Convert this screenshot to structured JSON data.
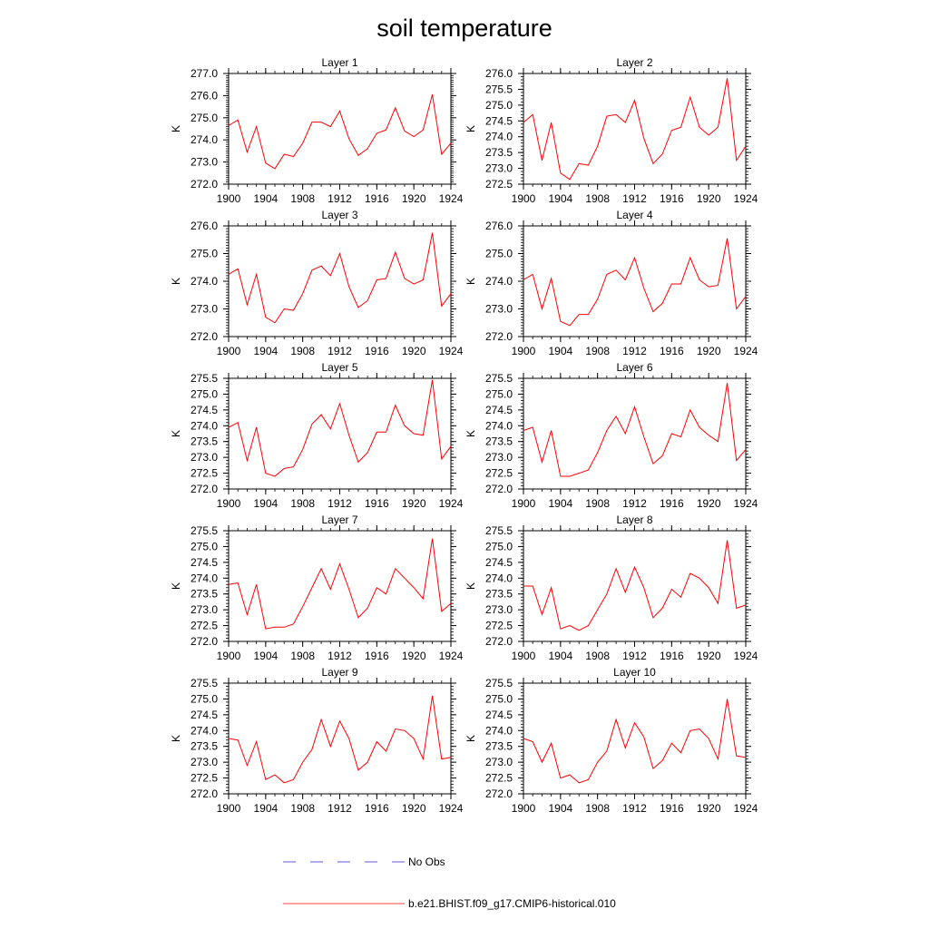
{
  "figure": {
    "title": "soil temperature"
  },
  "legend": {
    "entries": [
      {
        "label": "No Obs",
        "color": "#5a5ad8",
        "style": "dashed"
      },
      {
        "label": "b.e21.BHIST.f09_g17.CMIP6-historical.010",
        "color": "#ff0000",
        "style": "solid"
      }
    ]
  },
  "chart_data": [
    {
      "type": "line",
      "title": "Layer 1",
      "ylabel": "K",
      "x": [
        1900,
        1901,
        1902,
        1903,
        1904,
        1905,
        1906,
        1907,
        1908,
        1909,
        1910,
        1911,
        1912,
        1913,
        1914,
        1915,
        1916,
        1917,
        1918,
        1919,
        1920,
        1921,
        1922,
        1923,
        1924
      ],
      "ylim": [
        272.0,
        277.0
      ],
      "yticks": [
        "272.0",
        "273.0",
        "274.0",
        "275.0",
        "276.0",
        "277.0"
      ],
      "xlim": [
        1900,
        1924
      ],
      "xticks": [
        "1900",
        "1904",
        "1908",
        "1912",
        "1916",
        "1920",
        "1924"
      ],
      "series": [
        {
          "color": "#ff0000",
          "values": [
            274.65,
            274.9,
            273.45,
            274.6,
            272.95,
            272.7,
            273.35,
            273.25,
            273.85,
            274.8,
            274.8,
            274.6,
            275.3,
            274.05,
            273.3,
            273.6,
            274.3,
            274.45,
            275.45,
            274.4,
            274.15,
            274.45,
            276.05,
            273.35,
            273.85
          ]
        }
      ]
    },
    {
      "type": "line",
      "title": "Layer 2",
      "ylabel": "K",
      "x": [
        1900,
        1901,
        1902,
        1903,
        1904,
        1905,
        1906,
        1907,
        1908,
        1909,
        1910,
        1911,
        1912,
        1913,
        1914,
        1915,
        1916,
        1917,
        1918,
        1919,
        1920,
        1921,
        1922,
        1923,
        1924
      ],
      "ylim": [
        272.5,
        276.0
      ],
      "yticks": [
        "272.5",
        "273.0",
        "273.5",
        "274.0",
        "274.5",
        "275.0",
        "275.5",
        "276.0"
      ],
      "xlim": [
        1900,
        1924
      ],
      "xticks": [
        "1900",
        "1904",
        "1908",
        "1912",
        "1916",
        "1920",
        "1924"
      ],
      "series": [
        {
          "color": "#ff0000",
          "values": [
            274.45,
            274.7,
            273.25,
            274.45,
            272.85,
            272.65,
            273.15,
            273.1,
            273.7,
            274.65,
            274.7,
            274.45,
            275.15,
            273.95,
            273.15,
            273.45,
            274.2,
            274.3,
            275.25,
            274.3,
            274.05,
            274.3,
            275.85,
            273.25,
            273.7
          ]
        }
      ]
    },
    {
      "type": "line",
      "title": "Layer 3",
      "ylabel": "K",
      "x": [
        1900,
        1901,
        1902,
        1903,
        1904,
        1905,
        1906,
        1907,
        1908,
        1909,
        1910,
        1911,
        1912,
        1913,
        1914,
        1915,
        1916,
        1917,
        1918,
        1919,
        1920,
        1921,
        1922,
        1923,
        1924
      ],
      "ylim": [
        272.0,
        276.0
      ],
      "yticks": [
        "272.0",
        "273.0",
        "274.0",
        "275.0",
        "276.0"
      ],
      "xlim": [
        1900,
        1924
      ],
      "xticks": [
        "1900",
        "1904",
        "1908",
        "1912",
        "1916",
        "1920",
        "1924"
      ],
      "series": [
        {
          "color": "#ff0000",
          "values": [
            274.25,
            274.45,
            273.15,
            274.25,
            272.7,
            272.5,
            273.0,
            272.95,
            273.55,
            274.4,
            274.55,
            274.2,
            275.0,
            273.8,
            273.05,
            273.3,
            274.05,
            274.1,
            275.05,
            274.1,
            273.9,
            274.05,
            275.75,
            273.1,
            273.55
          ]
        }
      ]
    },
    {
      "type": "line",
      "title": "Layer 4",
      "ylabel": "K",
      "x": [
        1900,
        1901,
        1902,
        1903,
        1904,
        1905,
        1906,
        1907,
        1908,
        1909,
        1910,
        1911,
        1912,
        1913,
        1914,
        1915,
        1916,
        1917,
        1918,
        1919,
        1920,
        1921,
        1922,
        1923,
        1924
      ],
      "ylim": [
        272.0,
        276.0
      ],
      "yticks": [
        "272.0",
        "273.0",
        "274.0",
        "275.0",
        "276.0"
      ],
      "xlim": [
        1900,
        1924
      ],
      "xticks": [
        "1900",
        "1904",
        "1908",
        "1912",
        "1916",
        "1920",
        "1924"
      ],
      "series": [
        {
          "color": "#ff0000",
          "values": [
            274.05,
            274.25,
            273.0,
            274.1,
            272.55,
            272.4,
            272.8,
            272.8,
            273.35,
            274.25,
            274.4,
            274.05,
            274.85,
            273.75,
            272.9,
            273.2,
            273.9,
            273.9,
            274.85,
            274.05,
            273.8,
            273.85,
            275.55,
            273.0,
            273.45
          ]
        }
      ]
    },
    {
      "type": "line",
      "title": "Layer 5",
      "ylabel": "K",
      "x": [
        1900,
        1901,
        1902,
        1903,
        1904,
        1905,
        1906,
        1907,
        1908,
        1909,
        1910,
        1911,
        1912,
        1913,
        1914,
        1915,
        1916,
        1917,
        1918,
        1919,
        1920,
        1921,
        1922,
        1923,
        1924
      ],
      "ylim": [
        272.0,
        275.5
      ],
      "yticks": [
        "272.0",
        "272.5",
        "273.0",
        "273.5",
        "274.0",
        "274.5",
        "275.0",
        "275.5"
      ],
      "xlim": [
        1900,
        1924
      ],
      "xticks": [
        "1900",
        "1904",
        "1908",
        "1912",
        "1916",
        "1920",
        "1924"
      ],
      "series": [
        {
          "color": "#ff0000",
          "values": [
            273.95,
            274.1,
            272.9,
            273.95,
            272.5,
            272.4,
            272.65,
            272.7,
            273.25,
            274.05,
            274.35,
            273.9,
            274.7,
            273.7,
            272.85,
            273.15,
            273.8,
            273.8,
            274.65,
            274.0,
            273.75,
            273.7,
            275.45,
            272.95,
            273.35
          ]
        }
      ]
    },
    {
      "type": "line",
      "title": "Layer 6",
      "ylabel": "K",
      "x": [
        1900,
        1901,
        1902,
        1903,
        1904,
        1905,
        1906,
        1907,
        1908,
        1909,
        1910,
        1911,
        1912,
        1913,
        1914,
        1915,
        1916,
        1917,
        1918,
        1919,
        1920,
        1921,
        1922,
        1923,
        1924
      ],
      "ylim": [
        272.0,
        275.5
      ],
      "yticks": [
        "272.0",
        "272.5",
        "273.0",
        "273.5",
        "274.0",
        "274.5",
        "275.0",
        "275.5"
      ],
      "xlim": [
        1900,
        1924
      ],
      "xticks": [
        "1900",
        "1904",
        "1908",
        "1912",
        "1916",
        "1920",
        "1924"
      ],
      "series": [
        {
          "color": "#ff0000",
          "values": [
            273.85,
            273.95,
            272.85,
            273.85,
            272.4,
            272.4,
            272.5,
            272.6,
            273.15,
            273.85,
            274.3,
            273.75,
            274.6,
            273.65,
            272.8,
            273.05,
            273.75,
            273.65,
            274.5,
            273.95,
            273.7,
            273.5,
            275.35,
            272.9,
            273.25
          ]
        }
      ]
    },
    {
      "type": "line",
      "title": "Layer 7",
      "ylabel": "K",
      "x": [
        1900,
        1901,
        1902,
        1903,
        1904,
        1905,
        1906,
        1907,
        1908,
        1909,
        1910,
        1911,
        1912,
        1913,
        1914,
        1915,
        1916,
        1917,
        1918,
        1919,
        1920,
        1921,
        1922,
        1923,
        1924
      ],
      "ylim": [
        272.0,
        275.5
      ],
      "yticks": [
        "272.0",
        "272.5",
        "273.0",
        "273.5",
        "274.0",
        "274.5",
        "275.0",
        "275.5"
      ],
      "xlim": [
        1900,
        1924
      ],
      "xticks": [
        "1900",
        "1904",
        "1908",
        "1912",
        "1916",
        "1920",
        "1924"
      ],
      "series": [
        {
          "color": "#ff0000",
          "values": [
            273.8,
            273.85,
            272.85,
            273.8,
            272.4,
            272.45,
            272.45,
            272.55,
            273.1,
            273.7,
            274.3,
            273.65,
            274.45,
            273.65,
            272.75,
            273.05,
            273.7,
            273.5,
            274.3,
            274.0,
            273.7,
            273.35,
            275.25,
            272.95,
            273.2
          ]
        }
      ]
    },
    {
      "type": "line",
      "title": "Layer 8",
      "ylabel": "K",
      "x": [
        1900,
        1901,
        1902,
        1903,
        1904,
        1905,
        1906,
        1907,
        1908,
        1909,
        1910,
        1911,
        1912,
        1913,
        1914,
        1915,
        1916,
        1917,
        1918,
        1919,
        1920,
        1921,
        1922,
        1923,
        1924
      ],
      "ylim": [
        272.0,
        275.5
      ],
      "yticks": [
        "272.0",
        "272.5",
        "273.0",
        "273.5",
        "274.0",
        "274.5",
        "275.0",
        "275.5"
      ],
      "xlim": [
        1900,
        1924
      ],
      "xticks": [
        "1900",
        "1904",
        "1908",
        "1912",
        "1916",
        "1920",
        "1924"
      ],
      "series": [
        {
          "color": "#ff0000",
          "values": [
            273.75,
            273.75,
            272.85,
            273.7,
            272.4,
            272.5,
            272.35,
            272.5,
            273.0,
            273.5,
            274.3,
            273.55,
            274.35,
            273.7,
            272.75,
            273.05,
            273.65,
            273.4,
            274.15,
            274.0,
            273.7,
            273.2,
            275.2,
            273.05,
            273.15
          ]
        }
      ]
    },
    {
      "type": "line",
      "title": "Layer 9",
      "ylabel": "K",
      "x": [
        1900,
        1901,
        1902,
        1903,
        1904,
        1905,
        1906,
        1907,
        1908,
        1909,
        1910,
        1911,
        1912,
        1913,
        1914,
        1915,
        1916,
        1917,
        1918,
        1919,
        1920,
        1921,
        1922,
        1923,
        1924
      ],
      "ylim": [
        272.0,
        275.5
      ],
      "yticks": [
        "272.0",
        "272.5",
        "273.0",
        "273.5",
        "274.0",
        "274.5",
        "275.0",
        "275.5"
      ],
      "xlim": [
        1900,
        1924
      ],
      "xticks": [
        "1900",
        "1904",
        "1908",
        "1912",
        "1916",
        "1920",
        "1924"
      ],
      "series": [
        {
          "color": "#ff0000",
          "values": [
            273.75,
            273.7,
            272.9,
            273.65,
            272.45,
            272.6,
            272.35,
            272.45,
            273.0,
            273.4,
            274.35,
            273.5,
            274.3,
            273.75,
            272.75,
            273.0,
            273.65,
            273.35,
            274.05,
            274.0,
            273.75,
            273.1,
            275.1,
            273.1,
            273.15
          ]
        }
      ]
    },
    {
      "type": "line",
      "title": "Layer 10",
      "ylabel": "K",
      "x": [
        1900,
        1901,
        1902,
        1903,
        1904,
        1905,
        1906,
        1907,
        1908,
        1909,
        1910,
        1911,
        1912,
        1913,
        1914,
        1915,
        1916,
        1917,
        1918,
        1919,
        1920,
        1921,
        1922,
        1923,
        1924
      ],
      "ylim": [
        272.0,
        275.5
      ],
      "yticks": [
        "272.0",
        "272.5",
        "273.0",
        "273.5",
        "274.0",
        "274.5",
        "275.0",
        "275.5"
      ],
      "xlim": [
        1900,
        1924
      ],
      "xticks": [
        "1900",
        "1904",
        "1908",
        "1912",
        "1916",
        "1920",
        "1924"
      ],
      "series": [
        {
          "color": "#ff0000",
          "values": [
            273.75,
            273.65,
            273.0,
            273.6,
            272.5,
            272.6,
            272.35,
            272.45,
            273.0,
            273.35,
            274.35,
            273.45,
            274.25,
            273.8,
            272.8,
            273.05,
            273.6,
            273.3,
            274.0,
            274.05,
            273.75,
            273.1,
            275.0,
            273.2,
            273.15
          ]
        }
      ]
    }
  ]
}
